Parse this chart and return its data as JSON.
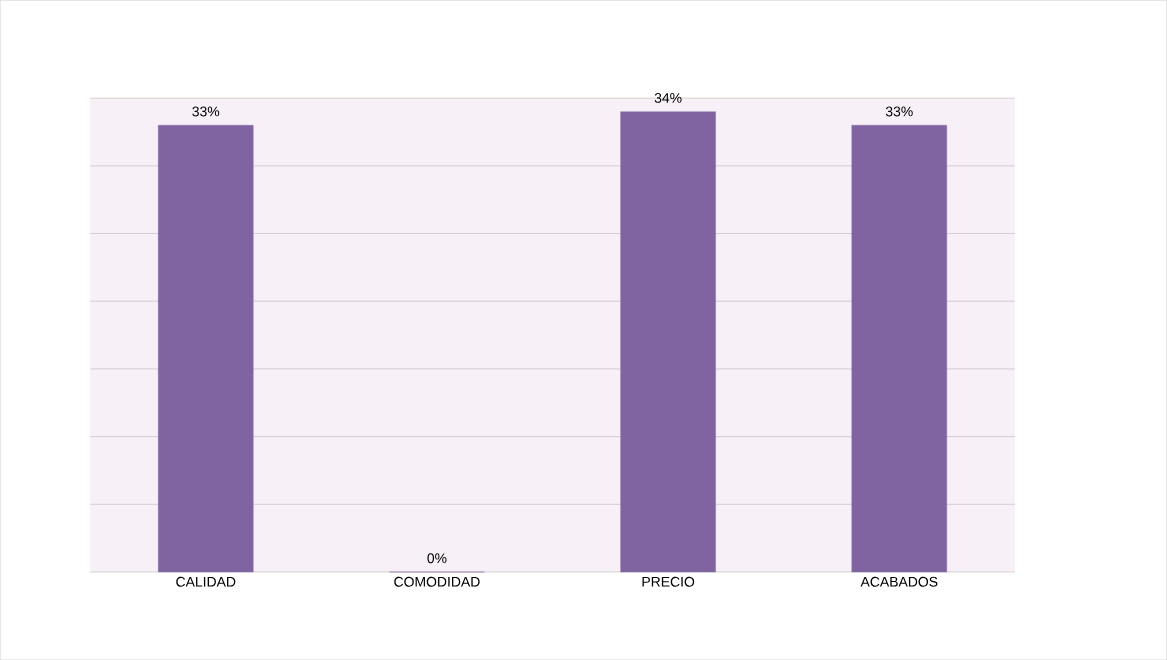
{
  "chart_data": {
    "type": "bar",
    "categories": [
      "CALIDAD",
      "COMODIDAD",
      "PRECIO",
      "ACABADOS"
    ],
    "values": [
      33,
      0,
      34,
      33
    ],
    "value_labels": [
      "33%",
      "0%",
      "34%",
      "33%"
    ],
    "color": "#8064a2",
    "ylim": [
      0,
      35
    ],
    "yticks": [
      {
        "value": 0,
        "label": null
      },
      {
        "value": 5,
        "label": null
      },
      {
        "value": 10,
        "label": null
      },
      {
        "value": 15,
        "label": null
      },
      {
        "value": 20,
        "label": null
      },
      {
        "value": 25,
        "label": null
      },
      {
        "value": 30,
        "label": null
      },
      {
        "value": 35,
        "label": null
      }
    ],
    "grid": "y"
  }
}
